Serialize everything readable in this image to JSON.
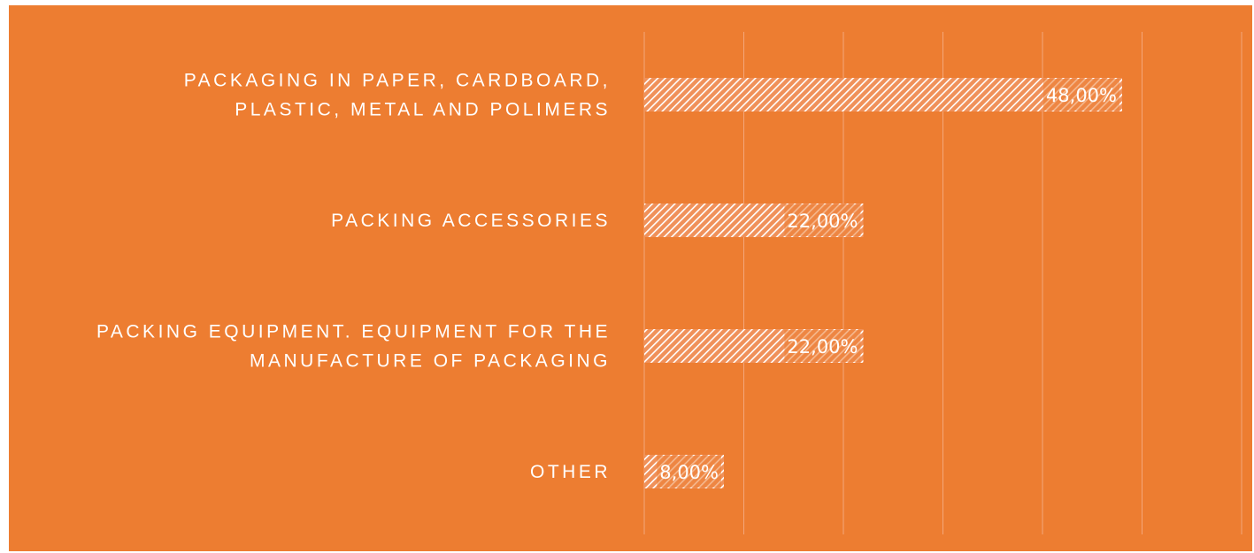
{
  "chart_data": {
    "type": "bar",
    "orientation": "horizontal",
    "categories": [
      [
        "PACKAGING IN PAPER, CARDBOARD,",
        "PLASTIC, METAL AND POLIMERS"
      ],
      [
        "PACKING ACCESSORIES"
      ],
      [
        "PACKING EQUIPMENT. EQUIPMENT FOR THE",
        "MANUFACTURE OF PACKAGING"
      ],
      [
        "OTHER"
      ]
    ],
    "values": [
      48,
      22,
      22,
      8
    ],
    "data_labels": [
      "48,00%",
      "22,00%",
      "22,00%",
      "8,00%"
    ],
    "xlim": [
      0,
      60
    ],
    "x_gridline_step": 10,
    "grid": true,
    "legend": "none",
    "colors": {
      "background": "#ED7D31",
      "bar_hatch": "#ffffff",
      "text": "#ffffff",
      "gridline": "#F4A77A"
    }
  }
}
